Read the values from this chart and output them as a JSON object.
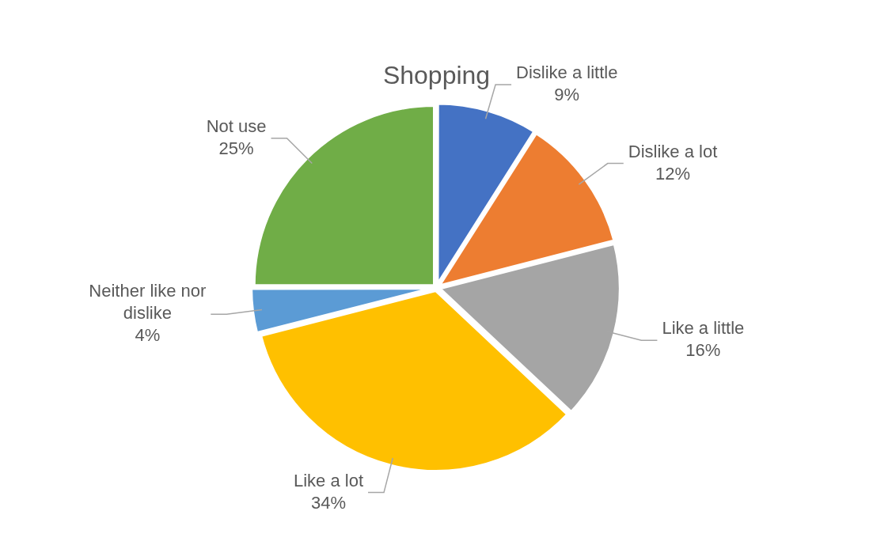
{
  "chart_data": {
    "type": "pie",
    "title": "Shopping",
    "categories": [
      "Dislike a little",
      "Dislike a lot",
      "Like a little",
      "Like a lot",
      "Neither like nor dislike",
      "Not use"
    ],
    "values": [
      9,
      12,
      16,
      34,
      4,
      25
    ],
    "colors": [
      "#4472c4",
      "#ed7d31",
      "#a5a5a5",
      "#ffc000",
      "#5b9bd5",
      "#70ad47"
    ],
    "value_labels": [
      "9%",
      "12%",
      "16%",
      "34%",
      "4%",
      "25%"
    ],
    "legend": false
  }
}
